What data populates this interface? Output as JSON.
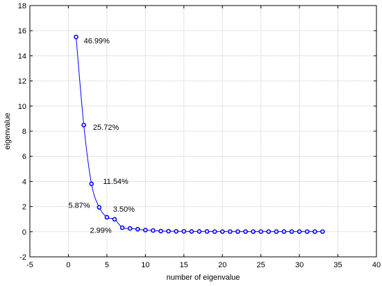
{
  "chart_data": {
    "type": "line",
    "title": "",
    "xlabel": "number of eigenvalue",
    "ylabel": "eigenvalue",
    "xlim": [
      -5,
      40
    ],
    "ylim": [
      -2,
      18
    ],
    "x_ticks": [
      -5,
      0,
      5,
      10,
      15,
      20,
      25,
      30,
      35,
      40
    ],
    "y_ticks": [
      -2,
      0,
      2,
      4,
      6,
      8,
      10,
      12,
      14,
      16,
      18
    ],
    "grid": true,
    "series": [
      {
        "x": [
          1,
          2,
          3,
          4,
          5,
          6,
          7,
          8,
          9,
          10,
          11,
          12,
          13,
          14,
          15,
          16,
          17,
          18,
          19,
          20,
          21,
          22,
          23,
          24,
          25,
          26,
          27,
          28,
          29,
          30,
          31,
          32,
          33
        ],
        "y": [
          15.5,
          8.49,
          3.81,
          1.94,
          1.15,
          0.99,
          0.32,
          0.26,
          0.2,
          0.13,
          0.1,
          0.05,
          0.04,
          0.03,
          0.03,
          0.02,
          0.02,
          0.02,
          0.01,
          0.01,
          0.01,
          0.01,
          0.01,
          0.01,
          0.01,
          0.01,
          0.01,
          0.01,
          0.01,
          0.01,
          0.01,
          0.01,
          0.01
        ],
        "color": "#0000ff"
      }
    ],
    "annotations": [
      {
        "text": "46.99%",
        "x": 2.0,
        "y": 15.0
      },
      {
        "text": "25.72%",
        "x": 3.2,
        "y": 8.1
      },
      {
        "text": "11.54%",
        "x": 4.5,
        "y": 3.8
      },
      {
        "text": "5.87%",
        "x": 0.0,
        "y": 1.9
      },
      {
        "text": "3.50%",
        "x": 5.8,
        "y": 1.6
      },
      {
        "text": "2.99%",
        "x": 2.8,
        "y": -0.1
      }
    ]
  }
}
